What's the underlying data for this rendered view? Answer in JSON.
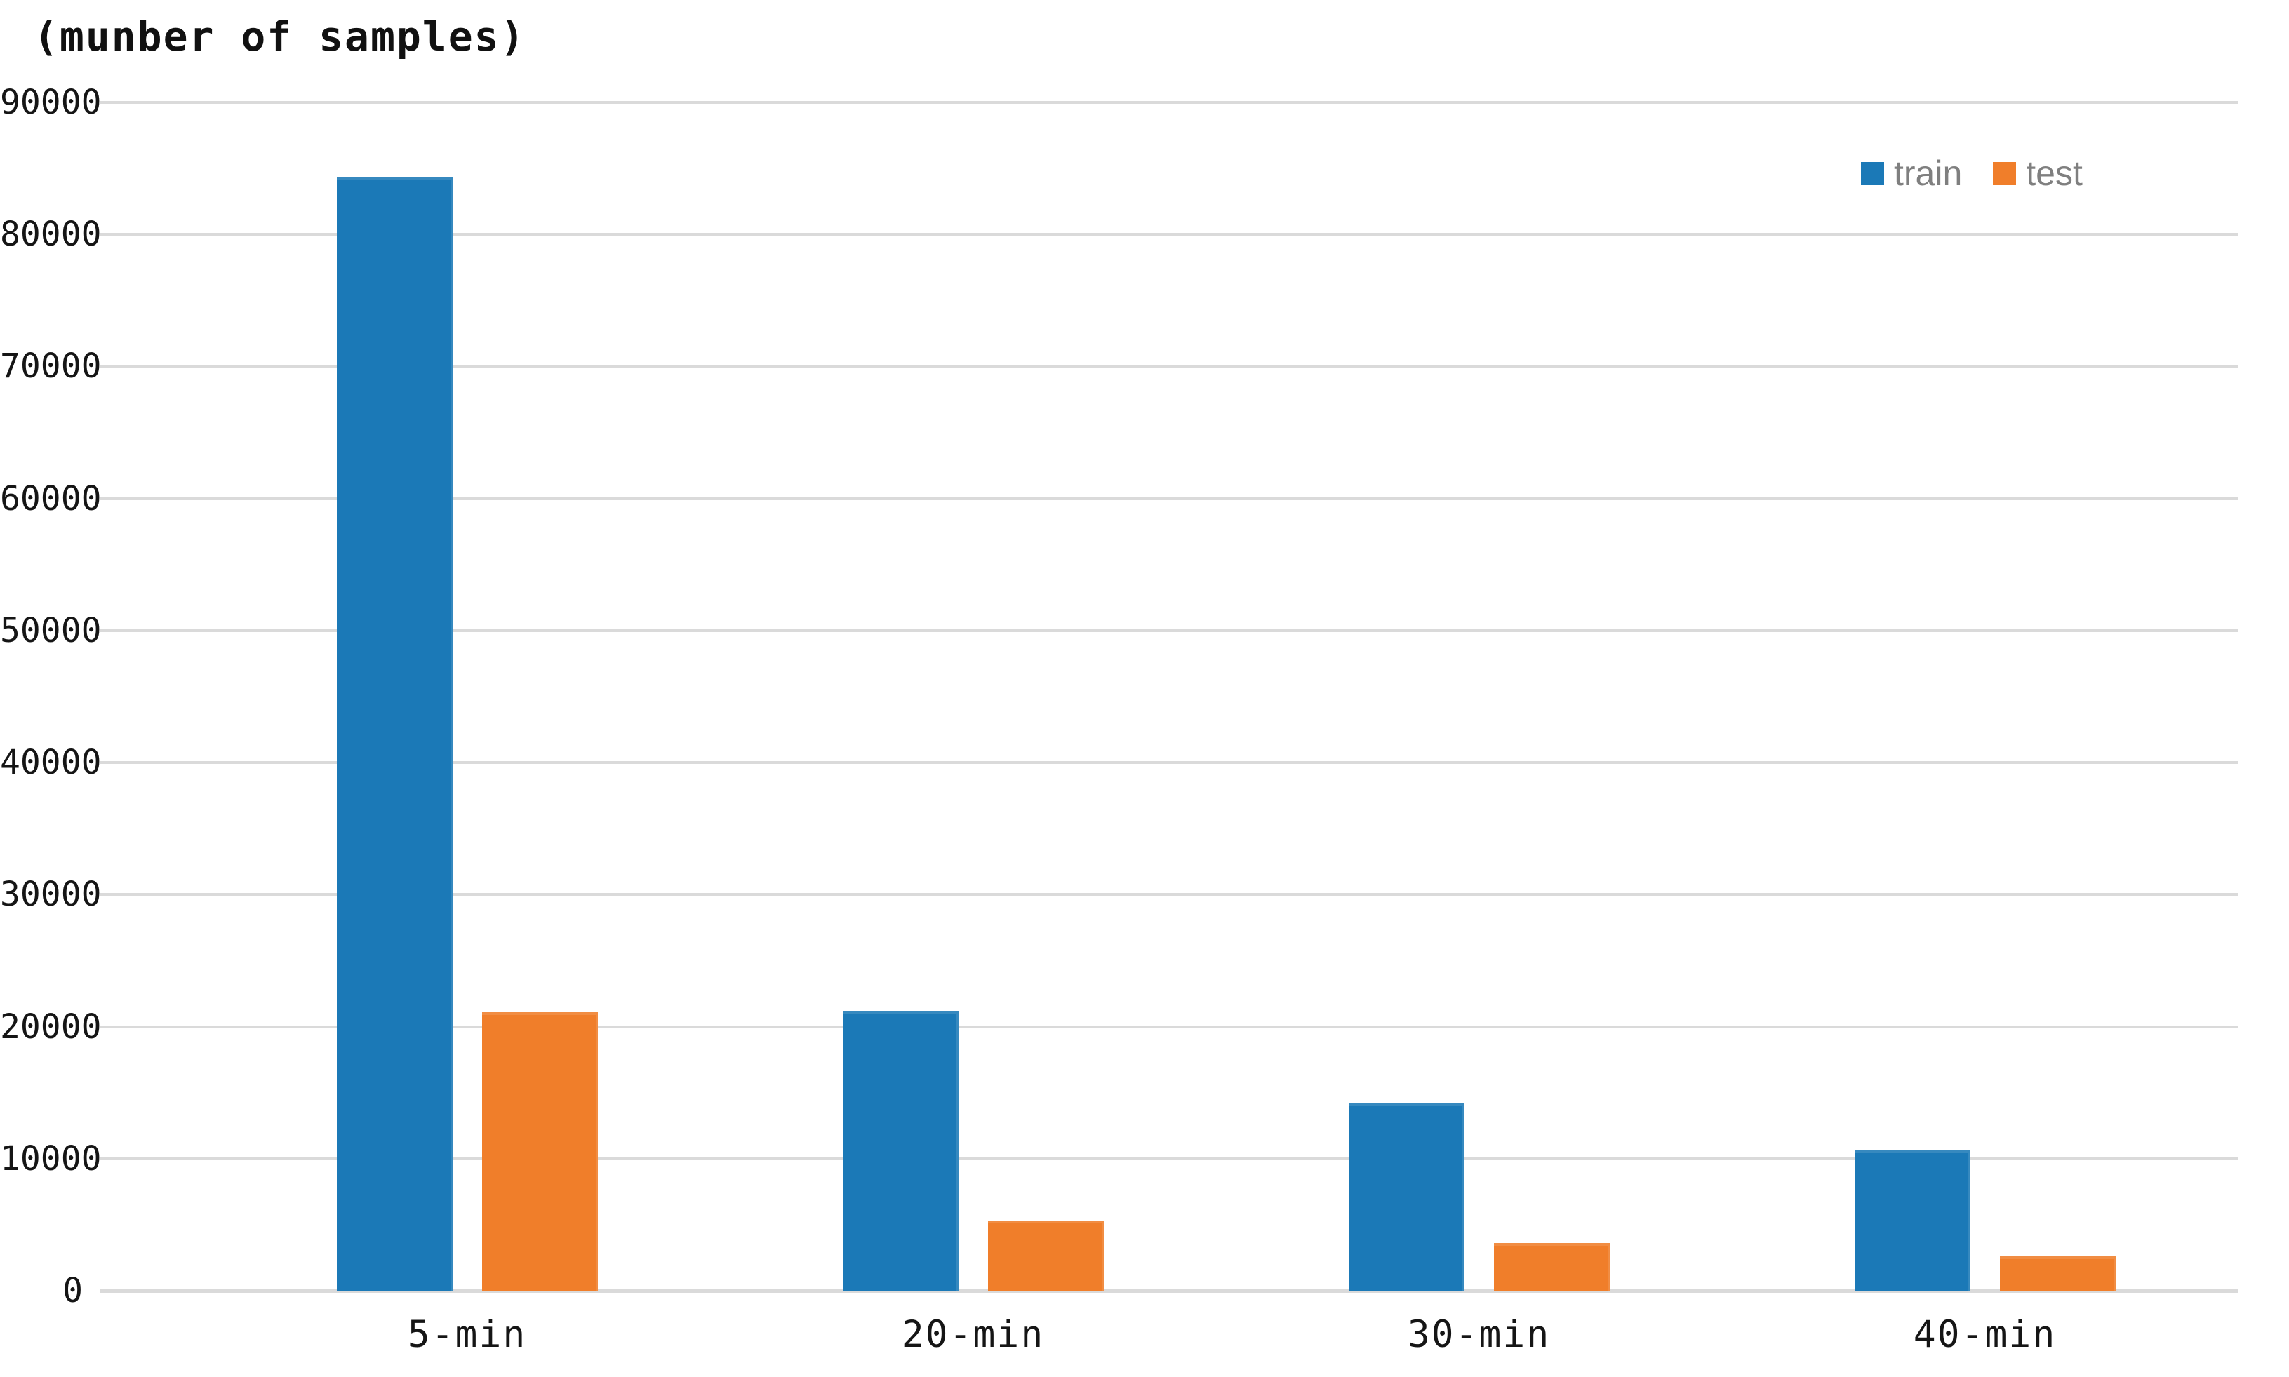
{
  "chart_data": {
    "type": "bar",
    "title": "(munber of samples)",
    "categories": [
      "5-min",
      "20-min",
      "30-min",
      "40-min"
    ],
    "series": [
      {
        "name": "train",
        "color": "#1B79B7",
        "values": [
          84300,
          21200,
          14200,
          10600
        ]
      },
      {
        "name": "test",
        "color": "#F07E2A",
        "values": [
          21100,
          5300,
          3600,
          2600
        ]
      }
    ],
    "ylim": [
      0,
      90000
    ],
    "ytick_step": 10000,
    "ytick_labels": [
      "0",
      "10000",
      "20000",
      "30000",
      "40000",
      "50000",
      "60000",
      "70000",
      "80000",
      "90000"
    ],
    "grid": "horizontal",
    "gridline_color": "#DADADA",
    "axis_text_color": "#151515",
    "legend": {
      "position": "top-right",
      "text_color": "#7F7F7F",
      "items": [
        "train",
        "test"
      ]
    }
  }
}
